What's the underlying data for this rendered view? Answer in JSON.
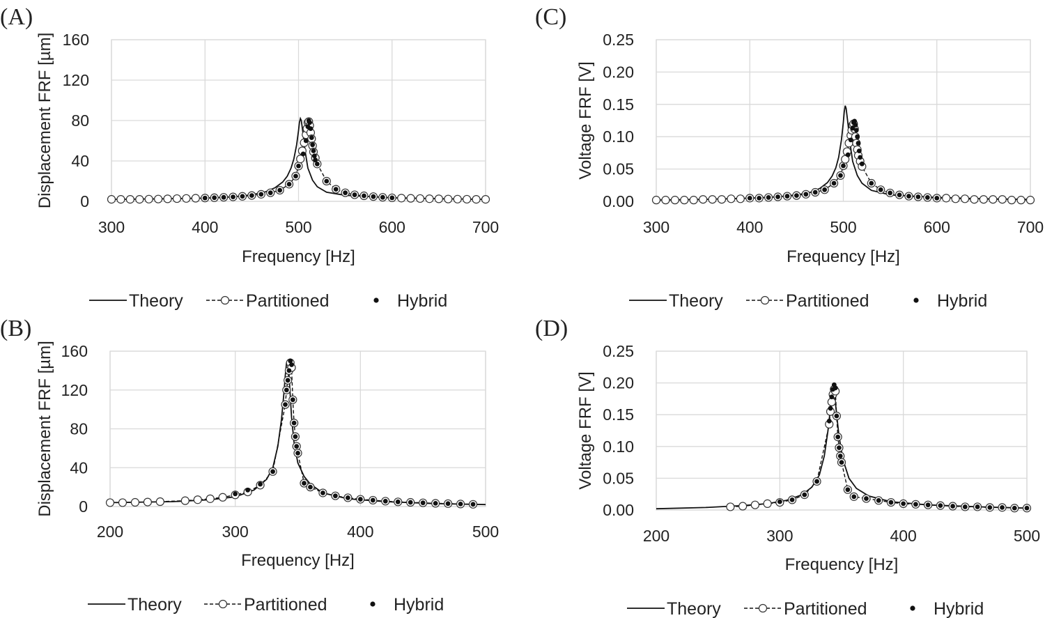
{
  "chart_data": [
    {
      "panel": "(A)",
      "type": "line",
      "xlabel": "Frequency [Hz]",
      "ylabel": "Displacement FRF [µm]",
      "xlim": [
        300,
        700
      ],
      "ylim": [
        0,
        160
      ],
      "xticks": [
        300,
        400,
        500,
        600,
        700
      ],
      "yticks": [
        0,
        40,
        80,
        120,
        160
      ],
      "ytick_labels": [
        "0",
        "40",
        "80",
        "120",
        "160"
      ],
      "grid": true,
      "legend": [
        "Theory",
        "Partitioned",
        "Hybrid"
      ],
      "legend_position": "bottom",
      "series": [
        {
          "name": "Theory",
          "style": "solid",
          "x": [
            300,
            350,
            400,
            430,
            450,
            465,
            475,
            483,
            488,
            492,
            495,
            498,
            500,
            501,
            502,
            503,
            505,
            507,
            510,
            515,
            520,
            530,
            550,
            600,
            650,
            700
          ],
          "y": [
            2,
            2.5,
            3.2,
            4.5,
            6.5,
            9.5,
            13.5,
            19,
            25,
            33,
            42,
            56,
            70,
            78,
            82,
            80,
            66,
            50,
            33,
            21,
            14.5,
            9,
            6,
            3.5,
            2.6,
            2
          ]
        },
        {
          "name": "Partitioned",
          "style": "dashed",
          "x": [
            300,
            310,
            320,
            330,
            340,
            350,
            360,
            370,
            380,
            390,
            400,
            410,
            420,
            430,
            440,
            450,
            460,
            470,
            480,
            490,
            497,
            500,
            502,
            504,
            506,
            508,
            509,
            510,
            511,
            512,
            513,
            514,
            515,
            516,
            518,
            520,
            530,
            540,
            550,
            560,
            570,
            580,
            590,
            600,
            610,
            620,
            630,
            640,
            650,
            660,
            670,
            680,
            690,
            700
          ],
          "y": [
            2,
            2,
            2,
            2,
            2.2,
            2.3,
            2.5,
            2.7,
            2.9,
            3.1,
            3.3,
            3.6,
            4,
            4.4,
            5,
            5.8,
            7,
            8.5,
            11,
            17,
            25,
            35,
            42,
            50,
            58,
            66,
            72,
            78,
            79,
            75,
            68,
            62,
            55,
            49,
            43,
            37,
            20,
            12,
            8.5,
            6.5,
            5.5,
            4.7,
            4,
            3.5,
            3.2,
            3,
            2.8,
            2.6,
            2.5,
            2.3,
            2.2,
            2.1,
            2,
            2
          ]
        },
        {
          "name": "Hybrid",
          "style": "marker",
          "x": [
            400,
            410,
            420,
            430,
            440,
            450,
            460,
            470,
            480,
            490,
            497,
            500,
            505,
            508,
            510,
            511,
            512,
            513,
            514,
            515,
            516,
            517,
            518,
            520,
            530,
            540,
            550,
            560,
            570,
            580,
            590,
            600
          ],
          "y": [
            3.3,
            3.6,
            4,
            4.4,
            5,
            5.8,
            7,
            8.5,
            11,
            17,
            25,
            35,
            47,
            60,
            74,
            80,
            78,
            72,
            63,
            56,
            50,
            45,
            41,
            37,
            20,
            12,
            8.5,
            6.5,
            5.5,
            4.7,
            4,
            3.5
          ]
        }
      ]
    },
    {
      "panel": "(B)",
      "type": "line",
      "xlabel": "Frequency [Hz]",
      "ylabel": "Displacement FRF [µm]",
      "xlim": [
        200,
        500
      ],
      "ylim": [
        0,
        160
      ],
      "xticks": [
        200,
        300,
        400,
        500
      ],
      "yticks": [
        0,
        40,
        80,
        120,
        160
      ],
      "ytick_labels": [
        "0",
        "40",
        "80",
        "120",
        "160"
      ],
      "grid": true,
      "legend": [
        "Theory",
        "Partitioned",
        "Hybrid"
      ],
      "legend_position": "bottom",
      "series": [
        {
          "name": "Theory",
          "style": "solid",
          "x": [
            200,
            250,
            280,
            300,
            315,
            325,
            330,
            334,
            337,
            339,
            340,
            341,
            342,
            343,
            345,
            347,
            350,
            355,
            360,
            370,
            390,
            420,
            460,
            500
          ],
          "y": [
            4,
            5,
            7,
            10,
            17,
            28,
            40,
            62,
            90,
            118,
            135,
            148,
            150,
            135,
            92,
            66,
            45,
            31,
            23,
            14,
            8,
            5,
            3,
            2
          ]
        },
        {
          "name": "Partitioned",
          "style": "dashed",
          "x": [
            200,
            210,
            220,
            230,
            240,
            260,
            270,
            280,
            290,
            300,
            310,
            320,
            330,
            340,
            341,
            342,
            343,
            344,
            345,
            346,
            347,
            348,
            349,
            350,
            355,
            360,
            370,
            380,
            390,
            400,
            410,
            420,
            430,
            440,
            450,
            460,
            470,
            480,
            490
          ],
          "y": [
            4,
            4,
            4.3,
            4.6,
            5,
            6,
            7,
            8,
            9.5,
            12,
            15,
            22,
            36,
            105,
            120,
            130,
            140,
            148,
            143,
            110,
            86,
            72,
            62,
            55,
            24,
            20,
            14,
            11,
            9,
            7.5,
            6.5,
            5.5,
            4.8,
            4.3,
            3.8,
            3.3,
            3,
            2.6,
            2.3
          ]
        },
        {
          "name": "Hybrid",
          "style": "marker",
          "x": [
            300,
            310,
            320,
            330,
            340,
            341,
            342,
            343,
            344,
            345,
            346,
            347,
            348,
            349,
            350,
            355,
            360,
            370,
            380,
            390,
            400,
            410,
            420,
            430,
            440,
            450,
            460,
            470,
            480,
            490
          ],
          "y": [
            13,
            17,
            23,
            36,
            105,
            120,
            130,
            140,
            150,
            146,
            110,
            86,
            72,
            62,
            55,
            24,
            20,
            14,
            11,
            9,
            7.5,
            6.5,
            5.5,
            4.8,
            4.3,
            3.8,
            3.3,
            3,
            2.6,
            2.3
          ]
        }
      ]
    },
    {
      "panel": "(C)",
      "type": "line",
      "xlabel": "Frequency [Hz]",
      "ylabel": "Voltage FRF [V]",
      "xlim": [
        300,
        700
      ],
      "ylim": [
        0,
        0.25
      ],
      "xticks": [
        300,
        400,
        500,
        600,
        700
      ],
      "yticks": [
        0,
        0.05,
        0.1,
        0.15,
        0.2,
        0.25
      ],
      "ytick_labels": [
        "0.00",
        "0.05",
        "0.10",
        "0.15",
        "0.20",
        "0.25"
      ],
      "grid": true,
      "legend": [
        "Theory",
        "Partitioned",
        "Hybrid"
      ],
      "legend_position": "bottom",
      "series": [
        {
          "name": "Theory",
          "style": "solid",
          "x": [
            300,
            350,
            400,
            430,
            450,
            465,
            475,
            483,
            488,
            492,
            495,
            498,
            500,
            501,
            502,
            503,
            505,
            507,
            510,
            515,
            520,
            530,
            550,
            600,
            650,
            700
          ],
          "y": [
            0.002,
            0.003,
            0.005,
            0.007,
            0.01,
            0.014,
            0.02,
            0.029,
            0.039,
            0.052,
            0.068,
            0.095,
            0.122,
            0.138,
            0.148,
            0.144,
            0.12,
            0.092,
            0.062,
            0.04,
            0.028,
            0.017,
            0.01,
            0.006,
            0.004,
            0.003
          ]
        },
        {
          "name": "Partitioned",
          "style": "dashed",
          "x": [
            300,
            310,
            320,
            330,
            340,
            350,
            360,
            370,
            380,
            390,
            400,
            410,
            420,
            430,
            440,
            450,
            460,
            470,
            480,
            490,
            497,
            500,
            502,
            504,
            506,
            508,
            509,
            510,
            511,
            512,
            513,
            514,
            515,
            516,
            518,
            520,
            530,
            540,
            550,
            560,
            570,
            580,
            590,
            600,
            610,
            620,
            630,
            640,
            650,
            660,
            670,
            680,
            690,
            700
          ],
          "y": [
            0.002,
            0.002,
            0.002,
            0.002,
            0.002,
            0.003,
            0.003,
            0.003,
            0.004,
            0.004,
            0.005,
            0.005,
            0.006,
            0.007,
            0.008,
            0.009,
            0.011,
            0.014,
            0.018,
            0.028,
            0.04,
            0.055,
            0.065,
            0.077,
            0.09,
            0.102,
            0.11,
            0.118,
            0.12,
            0.112,
            0.1,
            0.09,
            0.08,
            0.071,
            0.062,
            0.054,
            0.028,
            0.018,
            0.013,
            0.01,
            0.008,
            0.007,
            0.006,
            0.005,
            0.005,
            0.004,
            0.004,
            0.003,
            0.003,
            0.003,
            0.003,
            0.002,
            0.002,
            0.002
          ]
        },
        {
          "name": "Hybrid",
          "style": "marker",
          "x": [
            400,
            410,
            420,
            430,
            440,
            450,
            460,
            470,
            480,
            490,
            497,
            500,
            505,
            508,
            510,
            511,
            512,
            513,
            514,
            515,
            516,
            517,
            518,
            520,
            530,
            540,
            550,
            560,
            570,
            580,
            590,
            600
          ],
          "y": [
            0.005,
            0.005,
            0.006,
            0.007,
            0.008,
            0.009,
            0.011,
            0.014,
            0.018,
            0.028,
            0.04,
            0.055,
            0.072,
            0.095,
            0.113,
            0.122,
            0.124,
            0.118,
            0.11,
            0.1,
            0.09,
            0.078,
            0.068,
            0.058,
            0.028,
            0.018,
            0.013,
            0.01,
            0.008,
            0.007,
            0.006,
            0.005
          ]
        }
      ]
    },
    {
      "panel": "(D)",
      "type": "line",
      "xlabel": "Frequency [Hz]",
      "ylabel": "Voltage FRF [V]",
      "xlim": [
        200,
        500
      ],
      "ylim": [
        0,
        0.25
      ],
      "xticks": [
        200,
        300,
        400,
        500
      ],
      "yticks": [
        0,
        0.05,
        0.1,
        0.15,
        0.2,
        0.25
      ],
      "ytick_labels": [
        "0.00",
        "0.05",
        "0.10",
        "0.15",
        "0.20",
        "0.25"
      ],
      "grid": true,
      "legend": [
        "Theory",
        "Partitioned",
        "Hybrid"
      ],
      "legend_position": "bottom",
      "series": [
        {
          "name": "Theory",
          "style": "solid",
          "x": [
            200,
            240,
            270,
            290,
            305,
            318,
            326,
            332,
            336,
            339,
            341,
            342,
            343,
            344,
            346,
            348,
            351,
            356,
            362,
            372,
            390,
            420,
            460,
            500
          ],
          "y": [
            0.002,
            0.004,
            0.007,
            0.01,
            0.015,
            0.024,
            0.036,
            0.055,
            0.085,
            0.125,
            0.16,
            0.185,
            0.195,
            0.188,
            0.15,
            0.115,
            0.08,
            0.05,
            0.034,
            0.022,
            0.013,
            0.008,
            0.005,
            0.003
          ]
        },
        {
          "name": "Partitioned",
          "style": "dashed",
          "x": [
            260,
            270,
            280,
            290,
            300,
            310,
            320,
            330,
            340,
            341,
            342,
            343,
            344,
            345,
            346,
            347,
            348,
            349,
            350,
            355,
            360,
            370,
            380,
            390,
            400,
            410,
            420,
            430,
            440,
            450,
            460,
            470,
            480,
            490,
            500
          ],
          "y": [
            0.005,
            0.006,
            0.008,
            0.01,
            0.012,
            0.016,
            0.024,
            0.045,
            0.135,
            0.155,
            0.17,
            0.182,
            0.19,
            0.187,
            0.148,
            0.115,
            0.098,
            0.085,
            0.075,
            0.032,
            0.021,
            0.018,
            0.015,
            0.012,
            0.01,
            0.009,
            0.008,
            0.007,
            0.006,
            0.005,
            0.005,
            0.004,
            0.004,
            0.003,
            0.003
          ]
        },
        {
          "name": "Hybrid",
          "style": "marker",
          "x": [
            300,
            310,
            320,
            330,
            340,
            341,
            342,
            343,
            344,
            345,
            346,
            347,
            348,
            349,
            350,
            355,
            360,
            370,
            380,
            390,
            400,
            410,
            420,
            430,
            440,
            450,
            460,
            470,
            480,
            490,
            500
          ],
          "y": [
            0.013,
            0.016,
            0.024,
            0.045,
            0.14,
            0.16,
            0.178,
            0.19,
            0.197,
            0.192,
            0.148,
            0.115,
            0.098,
            0.085,
            0.075,
            0.032,
            0.021,
            0.018,
            0.015,
            0.012,
            0.01,
            0.009,
            0.008,
            0.007,
            0.006,
            0.005,
            0.005,
            0.004,
            0.004,
            0.003,
            0.003
          ]
        }
      ]
    }
  ]
}
